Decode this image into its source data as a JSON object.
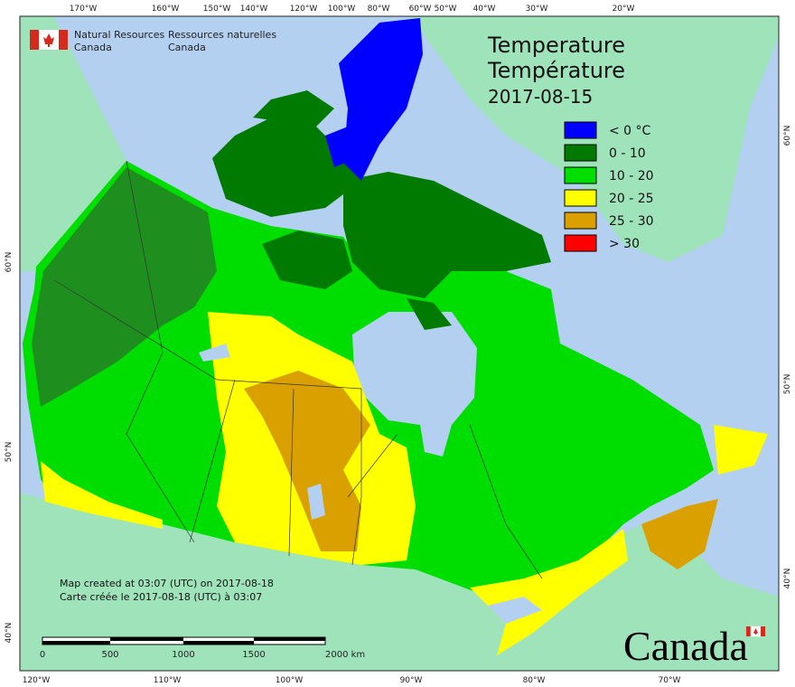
{
  "header": {
    "agency_en": [
      "Natural Resources",
      "Canada"
    ],
    "agency_fr": [
      "Ressources naturelles",
      "Canada"
    ]
  },
  "title": [
    "Temperature",
    "Température",
    "2017-08-15"
  ],
  "legend": [
    {
      "label": "< 0 °C",
      "color": "#0000ff"
    },
    {
      "label": "0 - 10",
      "color": "#007a00"
    },
    {
      "label": "10 - 20",
      "color": "#00dd00"
    },
    {
      "label": "20 - 25",
      "color": "#ffff00"
    },
    {
      "label": "25 - 30",
      "color": "#d9a000"
    },
    {
      "label": "> 30",
      "color": "#ff0000"
    }
  ],
  "graticule": {
    "top": [
      "170°W",
      "160°W",
      "150°W",
      "140°W",
      "120°W",
      "100°W",
      "80°W",
      "60°W",
      "50°W",
      "40°W",
      "30°W",
      "20°W"
    ],
    "bottom": [
      "120°W",
      "110°W",
      "100°W",
      "90°W",
      "80°W",
      "70°W"
    ],
    "left": [
      "60°N",
      "50°N",
      "40°N"
    ],
    "right": [
      "60°N",
      "50°N",
      "40°N"
    ]
  },
  "notes": [
    "Map created at 03:07 (UTC) on 2017-08-18",
    "Carte créée le 2017-08-18 (UTC) à 03:07"
  ],
  "scale_bar": {
    "labels": [
      "0",
      "500",
      "1000",
      "1500",
      "2000 km"
    ]
  },
  "wordmark": "Canada"
}
